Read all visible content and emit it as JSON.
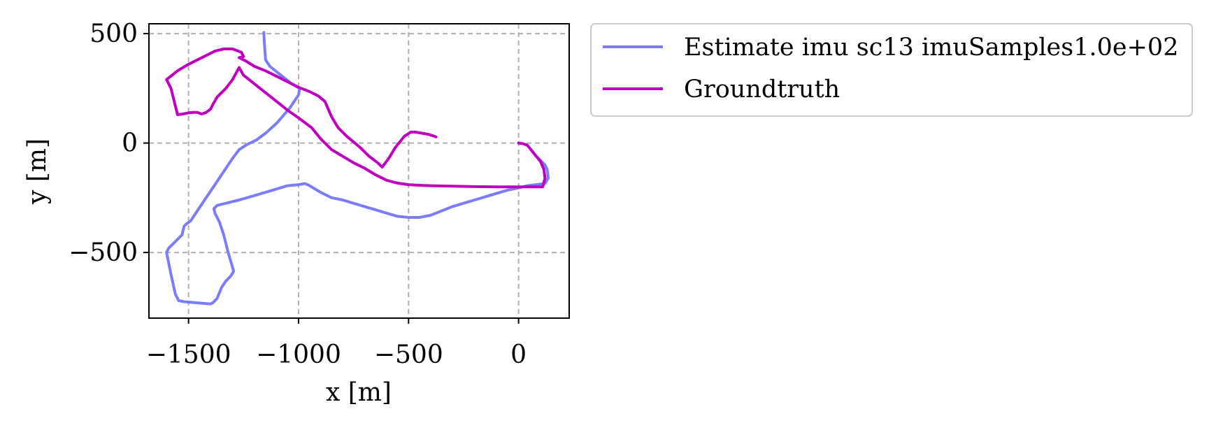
{
  "chart_data": {
    "type": "line",
    "title": "",
    "xlabel": "x [m]",
    "ylabel": "y [m]",
    "xlim": [
      -1680,
      230
    ],
    "ylim": [
      -800,
      545
    ],
    "xticks": [
      -1500,
      -1000,
      -500,
      0
    ],
    "xtick_labels": [
      "−1500",
      "−1000",
      "−500",
      "0"
    ],
    "yticks": [
      -500,
      0,
      500
    ],
    "ytick_labels": [
      "−500",
      "0",
      "500"
    ],
    "grid": true,
    "legend_position": "outside-right-top",
    "series": [
      {
        "name": "Estimate imu sc13 imuSamples1.0e+02",
        "color": "#7b7bfd",
        "x": [
          -1158,
          -1155,
          -1150,
          -1130,
          -1080,
          -1030,
          -995,
          -1000,
          -1040,
          -1100,
          -1150,
          -1190,
          -1240,
          -1270,
          -1300,
          -1340,
          -1380,
          -1420,
          -1460,
          -1490,
          -1510,
          -1520,
          -1530,
          -1560,
          -1590,
          -1600,
          -1580,
          -1560,
          -1545,
          -1520,
          -1460,
          -1400,
          -1390,
          -1370,
          -1350,
          -1330,
          -1310,
          -1300,
          -1295,
          -1320,
          -1340,
          -1360,
          -1380,
          -1385,
          -1370,
          -1330,
          -1270,
          -1200,
          -1100,
          -1050,
          -1000,
          -970,
          -950,
          -900,
          -850,
          -800,
          -750,
          -700,
          -650,
          -600,
          -550,
          -500,
          -450,
          -400,
          -350,
          -300,
          -250,
          -200,
          -150,
          -100,
          -50,
          0,
          40,
          80,
          120,
          135,
          130,
          120,
          100,
          80
        ],
        "y": [
          505,
          450,
          380,
          350,
          310,
          270,
          250,
          220,
          160,
          90,
          45,
          15,
          -10,
          -30,
          -70,
          -130,
          -190,
          -250,
          -310,
          -355,
          -370,
          -380,
          -420,
          -450,
          -480,
          -500,
          -600,
          -690,
          -720,
          -725,
          -730,
          -735,
          -730,
          -710,
          -660,
          -630,
          -610,
          -595,
          -585,
          -500,
          -420,
          -360,
          -320,
          -300,
          -285,
          -275,
          -260,
          -240,
          -210,
          -195,
          -190,
          -185,
          -195,
          -225,
          -250,
          -260,
          -275,
          -290,
          -305,
          -320,
          -335,
          -340,
          -340,
          -330,
          -310,
          -290,
          -275,
          -260,
          -245,
          -230,
          -215,
          -205,
          -195,
          -190,
          -185,
          -160,
          -120,
          -100,
          -80,
          -60
        ]
      },
      {
        "name": "Groundtruth",
        "color": "#bf00bf",
        "x": [
          0,
          20,
          40,
          60,
          80,
          100,
          115,
          120,
          110,
          60,
          0,
          -100,
          -200,
          -300,
          -400,
          -450,
          -500,
          -550,
          -600,
          -650,
          -700,
          -750,
          -800,
          -850,
          -880,
          -900,
          -940,
          -1000,
          -1050,
          -1100,
          -1150,
          -1200,
          -1250,
          -1270,
          -1300,
          -1330,
          -1370,
          -1390,
          -1400,
          -1420,
          -1440,
          -1460,
          -1480,
          -1500,
          -1530,
          -1550,
          -1580,
          -1600,
          -1550,
          -1500,
          -1450,
          -1410,
          -1380,
          -1340,
          -1300,
          -1260,
          -1250,
          -1270,
          -1240,
          -1200,
          -1150,
          -1100,
          -1050,
          -1000,
          -950,
          -910,
          -880,
          -850,
          -820,
          -780,
          -720,
          -680,
          -640,
          -620,
          -590,
          -560,
          -520,
          -490,
          -470,
          -440,
          -410,
          -380,
          -375
        ],
        "y": [
          0,
          -3,
          -10,
          -35,
          -60,
          -85,
          -120,
          -160,
          -200,
          -200,
          -200,
          -200,
          -199,
          -197,
          -195,
          -193,
          -190,
          -183,
          -170,
          -145,
          -115,
          -90,
          -60,
          -30,
          0,
          20,
          70,
          115,
          150,
          190,
          230,
          270,
          310,
          345,
          290,
          250,
          210,
          175,
          155,
          140,
          133,
          140,
          140,
          138,
          132,
          130,
          250,
          290,
          330,
          360,
          385,
          405,
          420,
          430,
          430,
          415,
          395,
          390,
          375,
          350,
          330,
          305,
          280,
          255,
          235,
          215,
          190,
          120,
          70,
          30,
          -20,
          -60,
          -90,
          -110,
          -70,
          -20,
          30,
          50,
          50,
          45,
          40,
          30,
          28
        ]
      }
    ]
  }
}
